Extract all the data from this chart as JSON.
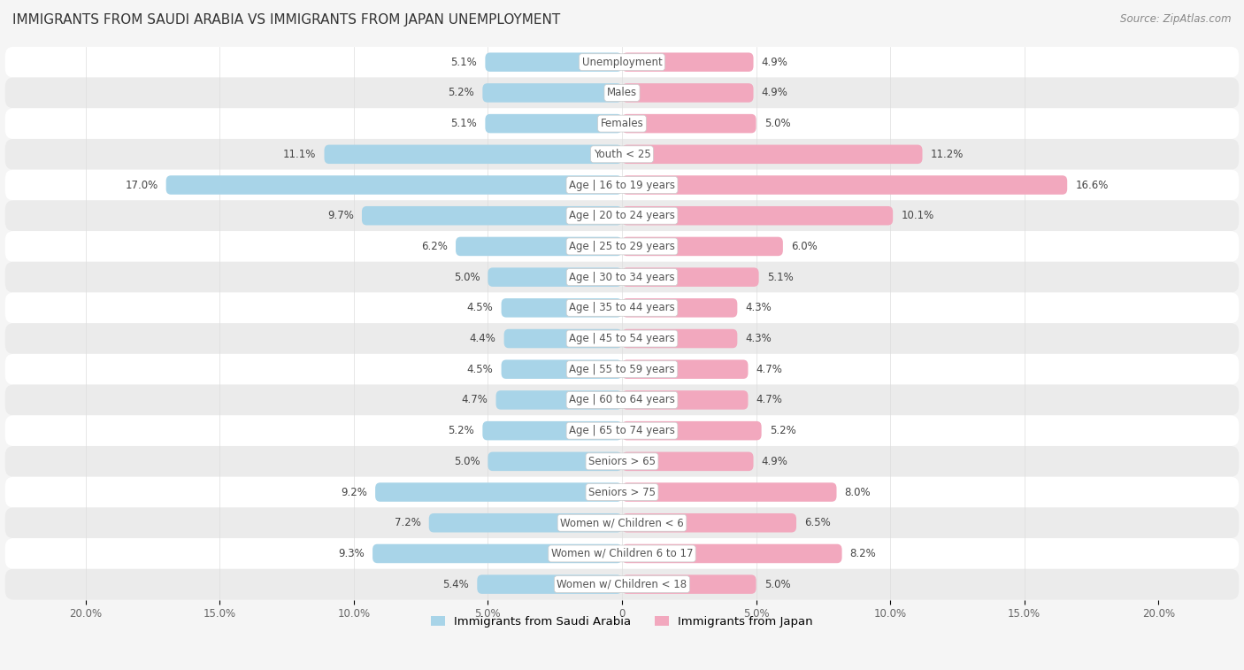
{
  "title": "IMMIGRANTS FROM SAUDI ARABIA VS IMMIGRANTS FROM JAPAN UNEMPLOYMENT",
  "source": "Source: ZipAtlas.com",
  "categories": [
    "Unemployment",
    "Males",
    "Females",
    "Youth < 25",
    "Age | 16 to 19 years",
    "Age | 20 to 24 years",
    "Age | 25 to 29 years",
    "Age | 30 to 34 years",
    "Age | 35 to 44 years",
    "Age | 45 to 54 years",
    "Age | 55 to 59 years",
    "Age | 60 to 64 years",
    "Age | 65 to 74 years",
    "Seniors > 65",
    "Seniors > 75",
    "Women w/ Children < 6",
    "Women w/ Children 6 to 17",
    "Women w/ Children < 18"
  ],
  "saudi_arabia": [
    5.1,
    5.2,
    5.1,
    11.1,
    17.0,
    9.7,
    6.2,
    5.0,
    4.5,
    4.4,
    4.5,
    4.7,
    5.2,
    5.0,
    9.2,
    7.2,
    9.3,
    5.4
  ],
  "japan": [
    4.9,
    4.9,
    5.0,
    11.2,
    16.6,
    10.1,
    6.0,
    5.1,
    4.3,
    4.3,
    4.7,
    4.7,
    5.2,
    4.9,
    8.0,
    6.5,
    8.2,
    5.0
  ],
  "saudi_color": "#a8d4e8",
  "japan_color": "#f2a8be",
  "row_colors": [
    "#ffffff",
    "#ebebeb"
  ],
  "background_color": "#f5f5f5",
  "xlim": 20.0,
  "legend_label_saudi": "Immigrants from Saudi Arabia",
  "legend_label_japan": "Immigrants from Japan"
}
